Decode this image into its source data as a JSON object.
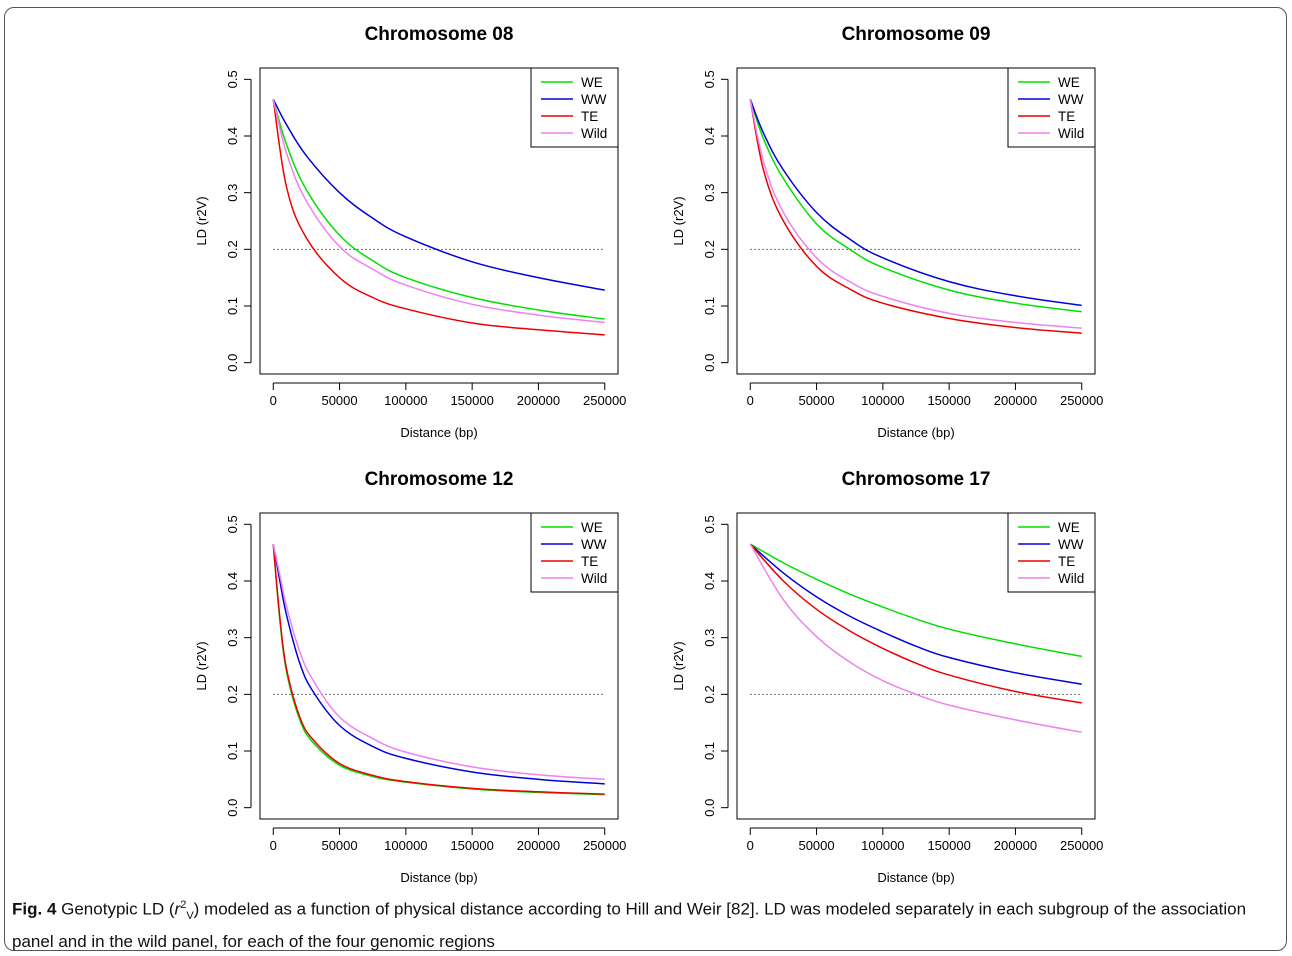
{
  "caption": {
    "label": "Fig. 4",
    "text_before": " Genotypic LD (",
    "r": "r",
    "sup": "2",
    "sub": "V",
    "text_after": ") modeled as a function of physical distance according to Hill and Weir [82]. LD was modeled separately in each subgroup of the association panel and in the wild panel, for each of the four genomic regions"
  },
  "colors": {
    "WE": "#00e000",
    "WW": "#0000dd",
    "TE": "#ee0000",
    "Wild": "#ee82ee",
    "threshold": "#444444"
  },
  "chart_data": [
    {
      "type": "line",
      "title": "Chromosome 08",
      "xlabel": "Distance (bp)",
      "ylabel": "LD (r2V)",
      "xlim": [
        0,
        250000
      ],
      "ylim": [
        0,
        0.5
      ],
      "xticks": [
        0,
        50000,
        100000,
        150000,
        200000,
        250000
      ],
      "yticks": [
        0.0,
        0.1,
        0.2,
        0.3,
        0.4,
        0.5
      ],
      "threshold": 0.2,
      "legend": "top-right",
      "x": [
        0,
        10000,
        25000,
        50000,
        75000,
        100000,
        150000,
        200000,
        250000
      ],
      "series": [
        {
          "name": "WE",
          "values": [
            0.465,
            0.385,
            0.305,
            0.225,
            0.18,
            0.15,
            0.115,
            0.093,
            0.077
          ]
        },
        {
          "name": "WW",
          "values": [
            0.465,
            0.42,
            0.365,
            0.3,
            0.255,
            0.222,
            0.178,
            0.15,
            0.128
          ]
        },
        {
          "name": "TE",
          "values": [
            0.465,
            0.31,
            0.22,
            0.15,
            0.115,
            0.095,
            0.07,
            0.058,
            0.049
          ]
        },
        {
          "name": "Wild",
          "values": [
            0.465,
            0.37,
            0.285,
            0.205,
            0.165,
            0.137,
            0.103,
            0.084,
            0.071
          ]
        }
      ]
    },
    {
      "type": "line",
      "title": "Chromosome 09",
      "xlabel": "Distance (bp)",
      "ylabel": "LD (r2V)",
      "xlim": [
        0,
        250000
      ],
      "ylim": [
        0,
        0.5
      ],
      "xticks": [
        0,
        50000,
        100000,
        150000,
        200000,
        250000
      ],
      "yticks": [
        0.0,
        0.1,
        0.2,
        0.3,
        0.4,
        0.5
      ],
      "threshold": 0.2,
      "legend": "top-right",
      "x": [
        0,
        10000,
        25000,
        50000,
        75000,
        100000,
        150000,
        200000,
        250000
      ],
      "series": [
        {
          "name": "WE",
          "values": [
            0.465,
            0.395,
            0.325,
            0.245,
            0.2,
            0.168,
            0.128,
            0.105,
            0.09
          ]
        },
        {
          "name": "WW",
          "values": [
            0.465,
            0.405,
            0.34,
            0.265,
            0.218,
            0.185,
            0.143,
            0.118,
            0.101
          ]
        },
        {
          "name": "TE",
          "values": [
            0.465,
            0.34,
            0.25,
            0.17,
            0.13,
            0.105,
            0.078,
            0.062,
            0.052
          ]
        },
        {
          "name": "Wild",
          "values": [
            0.465,
            0.355,
            0.265,
            0.185,
            0.143,
            0.117,
            0.087,
            0.071,
            0.061
          ]
        }
      ]
    },
    {
      "type": "line",
      "title": "Chromosome 12",
      "xlabel": "Distance (bp)",
      "ylabel": "LD (r2V)",
      "xlim": [
        0,
        250000
      ],
      "ylim": [
        0,
        0.5
      ],
      "xticks": [
        0,
        50000,
        100000,
        150000,
        200000,
        250000
      ],
      "yticks": [
        0.0,
        0.1,
        0.2,
        0.3,
        0.4,
        0.5
      ],
      "threshold": 0.2,
      "legend": "top-right",
      "x": [
        0,
        5000,
        10000,
        20000,
        30000,
        50000,
        75000,
        100000,
        150000,
        200000,
        250000
      ],
      "series": [
        {
          "name": "WE",
          "values": [
            0.465,
            0.33,
            0.24,
            0.155,
            0.115,
            0.075,
            0.055,
            0.045,
            0.033,
            0.027,
            0.023
          ]
        },
        {
          "name": "WW",
          "values": [
            0.465,
            0.4,
            0.34,
            0.255,
            0.205,
            0.145,
            0.108,
            0.087,
            0.063,
            0.05,
            0.042
          ]
        },
        {
          "name": "TE",
          "values": [
            0.465,
            0.335,
            0.245,
            0.16,
            0.12,
            0.078,
            0.057,
            0.046,
            0.034,
            0.028,
            0.024
          ]
        },
        {
          "name": "Wild",
          "values": [
            0.465,
            0.41,
            0.355,
            0.275,
            0.225,
            0.16,
            0.122,
            0.098,
            0.072,
            0.058,
            0.05
          ]
        }
      ]
    },
    {
      "type": "line",
      "title": "Chromosome 17",
      "xlabel": "Distance (bp)",
      "ylabel": "LD (r2V)",
      "xlim": [
        0,
        250000
      ],
      "ylim": [
        0,
        0.5
      ],
      "xticks": [
        0,
        50000,
        100000,
        150000,
        200000,
        250000
      ],
      "yticks": [
        0.0,
        0.1,
        0.2,
        0.3,
        0.4,
        0.5
      ],
      "threshold": 0.2,
      "legend": "top-right",
      "x": [
        0,
        25000,
        50000,
        75000,
        100000,
        125000,
        150000,
        200000,
        250000
      ],
      "series": [
        {
          "name": "WE",
          "values": [
            0.465,
            0.432,
            0.403,
            0.377,
            0.354,
            0.333,
            0.315,
            0.289,
            0.267
          ]
        },
        {
          "name": "WW",
          "values": [
            0.465,
            0.414,
            0.372,
            0.338,
            0.31,
            0.285,
            0.265,
            0.238,
            0.218
          ]
        },
        {
          "name": "TE",
          "values": [
            0.465,
            0.4,
            0.35,
            0.312,
            0.281,
            0.255,
            0.234,
            0.205,
            0.185
          ]
        },
        {
          "name": "Wild",
          "values": [
            0.465,
            0.367,
            0.302,
            0.257,
            0.224,
            0.2,
            0.181,
            0.155,
            0.133
          ]
        }
      ]
    }
  ]
}
